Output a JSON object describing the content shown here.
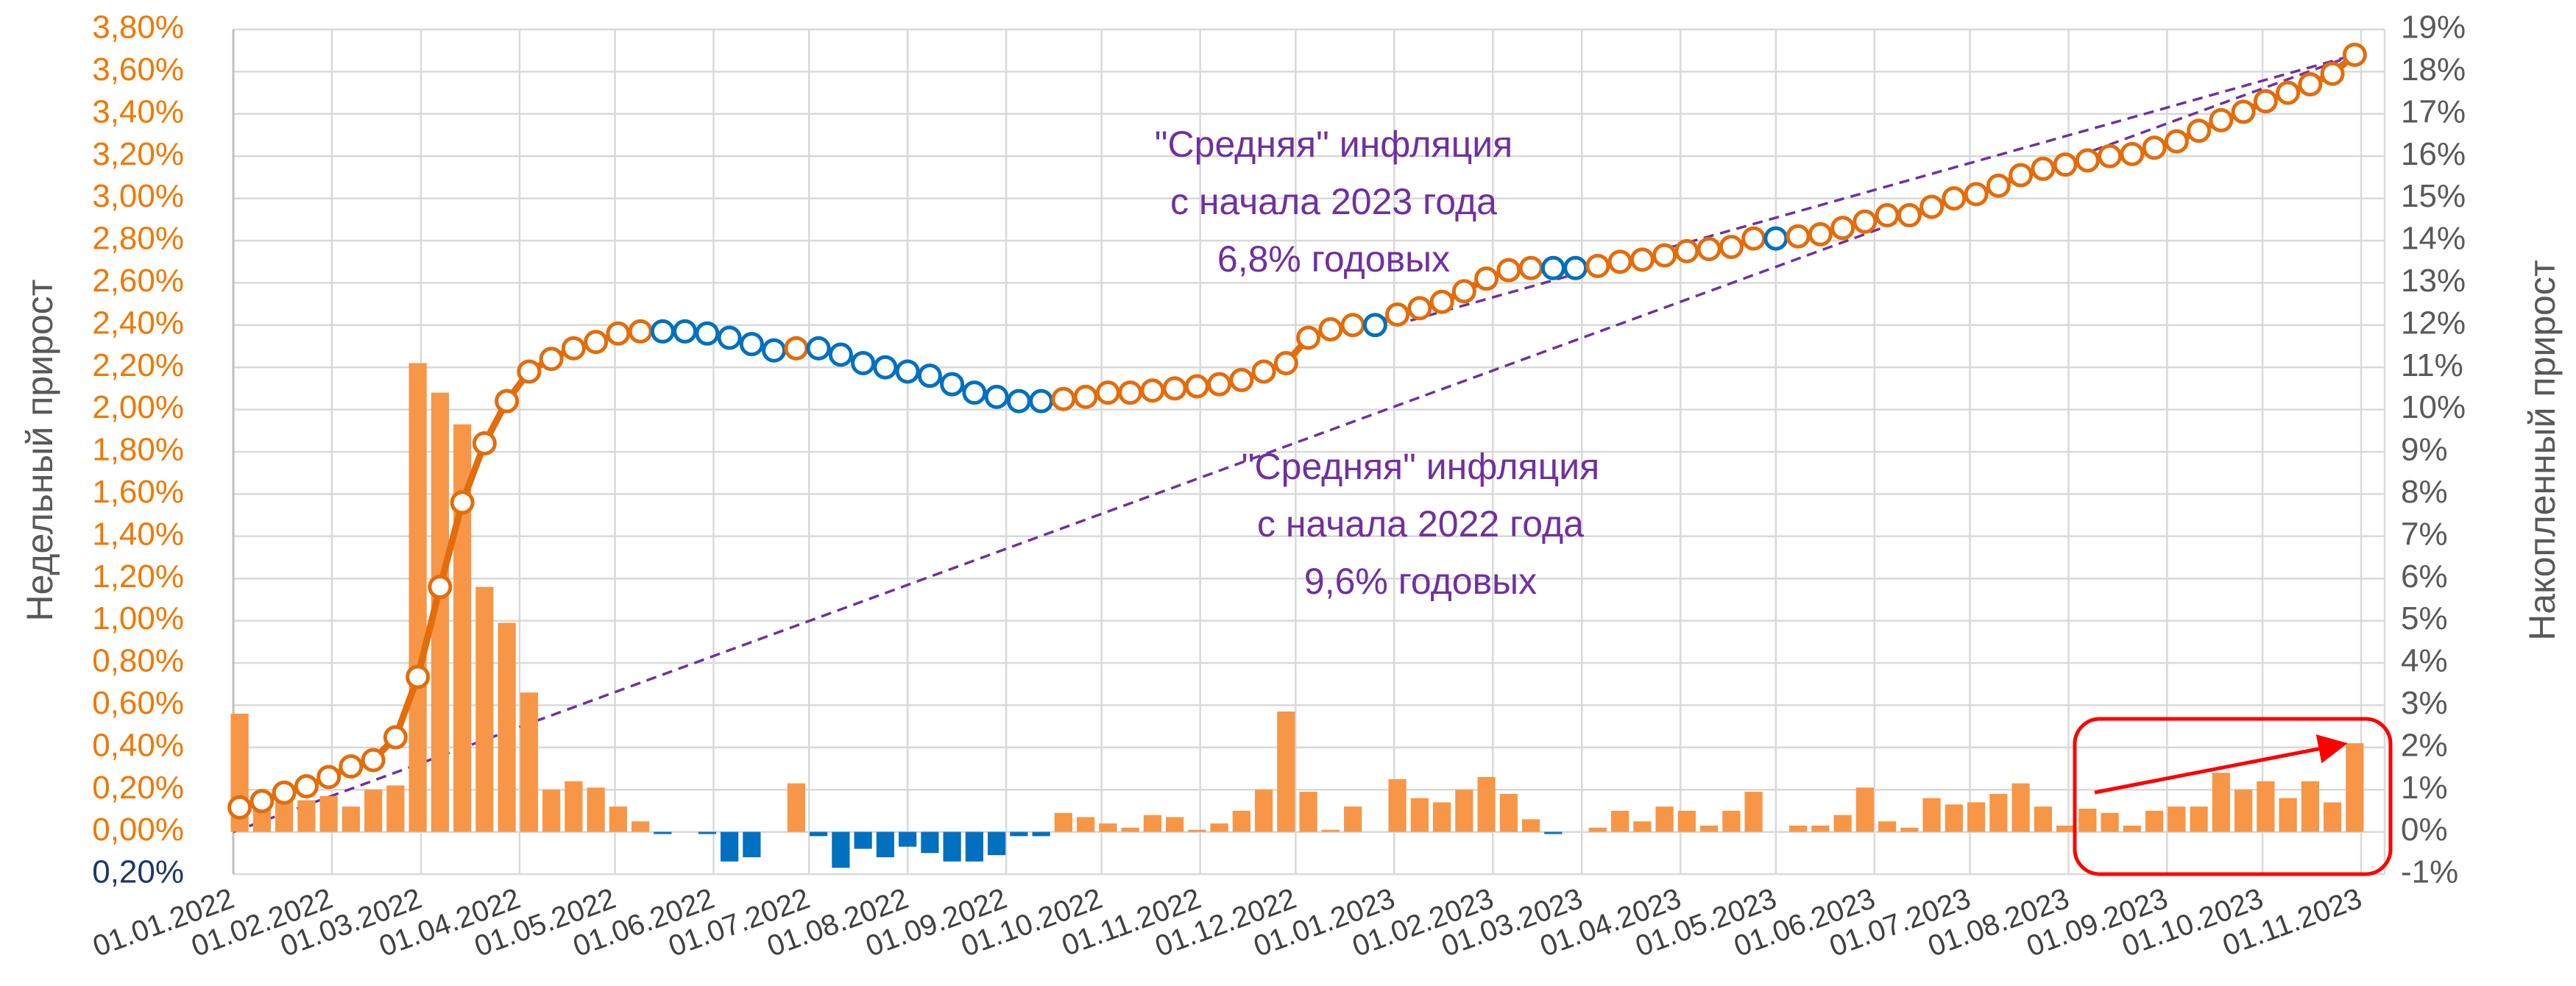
{
  "chart_data": {
    "type": "combo",
    "y_label": "Недельный прирост",
    "y2_label": "Накопленный прирост",
    "x": [
      "03.01.2022",
      "10.01.2022",
      "17.01.2022",
      "24.01.2022",
      "31.01.2022",
      "07.02.2022",
      "14.02.2022",
      "21.02.2022",
      "28.02.2022",
      "07.03.2022",
      "14.03.2022",
      "21.03.2022",
      "28.03.2022",
      "04.04.2022",
      "11.04.2022",
      "18.04.2022",
      "25.04.2022",
      "02.05.2022",
      "09.05.2022",
      "16.05.2022",
      "23.05.2022",
      "30.05.2022",
      "06.06.2022",
      "13.06.2022",
      "20.06.2022",
      "27.06.2022",
      "04.07.2022",
      "11.07.2022",
      "18.07.2022",
      "25.07.2022",
      "01.08.2022",
      "08.08.2022",
      "15.08.2022",
      "22.08.2022",
      "29.08.2022",
      "05.09.2022",
      "12.09.2022",
      "19.09.2022",
      "26.09.2022",
      "03.10.2022",
      "10.10.2022",
      "17.10.2022",
      "24.10.2022",
      "31.10.2022",
      "07.11.2022",
      "14.11.2022",
      "21.11.2022",
      "28.11.2022",
      "05.12.2022",
      "12.12.2022",
      "19.12.2022",
      "26.12.2022",
      "02.01.2023",
      "09.01.2023",
      "16.01.2023",
      "23.01.2023",
      "30.01.2023",
      "06.02.2023",
      "13.02.2023",
      "20.02.2023",
      "27.02.2023",
      "06.03.2023",
      "13.03.2023",
      "20.03.2023",
      "27.03.2023",
      "03.04.2023",
      "10.04.2023",
      "17.04.2023",
      "24.04.2023",
      "01.05.2023",
      "08.05.2023",
      "15.05.2023",
      "22.05.2023",
      "29.05.2023",
      "05.06.2023",
      "12.06.2023",
      "19.06.2023",
      "26.06.2023",
      "03.07.2023",
      "10.07.2023",
      "17.07.2023",
      "24.07.2023",
      "31.07.2023",
      "07.08.2023",
      "14.08.2023",
      "21.08.2023",
      "28.08.2023",
      "04.09.2023",
      "11.09.2023",
      "18.09.2023",
      "25.09.2023",
      "02.10.2023",
      "09.10.2023",
      "16.10.2023",
      "23.10.2023",
      "30.10.2023"
    ],
    "xlim": [
      "01.01.2022",
      "01.11.2023"
    ],
    "xticks": [
      "01.01.2022",
      "01.02.2022",
      "01.03.2022",
      "01.04.2022",
      "01.05.2022",
      "01.06.2022",
      "01.07.2022",
      "01.08.2022",
      "01.09.2022",
      "01.10.2022",
      "01.11.2022",
      "01.12.2022",
      "01.01.2023",
      "01.02.2023",
      "01.03.2023",
      "01.04.2023",
      "01.05.2023",
      "01.06.2023",
      "01.07.2023",
      "01.08.2023",
      "01.09.2023",
      "01.10.2023",
      "01.11.2023"
    ],
    "ylim": [
      -0.2,
      3.8
    ],
    "yticks": [
      {
        "value": -0.2,
        "label": "0,20%"
      },
      {
        "value": 0,
        "label": "0,00%"
      },
      {
        "value": 0.2,
        "label": "0,20%"
      },
      {
        "value": 0.4,
        "label": "0,40%"
      },
      {
        "value": 0.6,
        "label": "0,60%"
      },
      {
        "value": 0.8,
        "label": "0,80%"
      },
      {
        "value": 1.0,
        "label": "1,00%"
      },
      {
        "value": 1.2,
        "label": "1,20%"
      },
      {
        "value": 1.4,
        "label": "1,40%"
      },
      {
        "value": 1.6,
        "label": "1,60%"
      },
      {
        "value": 1.8,
        "label": "1,80%"
      },
      {
        "value": 2.0,
        "label": "2,00%"
      },
      {
        "value": 2.2,
        "label": "2,20%"
      },
      {
        "value": 2.4,
        "label": "2,40%"
      },
      {
        "value": 2.6,
        "label": "2,60%"
      },
      {
        "value": 2.8,
        "label": "2,80%"
      },
      {
        "value": 3.0,
        "label": "3,00%"
      },
      {
        "value": 3.2,
        "label": "3,20%"
      },
      {
        "value": 3.4,
        "label": "3,40%"
      },
      {
        "value": 3.6,
        "label": "3,60%"
      },
      {
        "value": 3.8,
        "label": "3,80%"
      }
    ],
    "ytick_color": "#f07800",
    "ytick_negative_color": "#1f3864",
    "y2lim": [
      -1,
      19
    ],
    "y2ticks": [
      {
        "value": -1,
        "label": "-1%"
      },
      {
        "value": 0,
        "label": "0%"
      },
      {
        "value": 1,
        "label": "1%"
      },
      {
        "value": 2,
        "label": "2%"
      },
      {
        "value": 3,
        "label": "3%"
      },
      {
        "value": 4,
        "label": "4%"
      },
      {
        "value": 5,
        "label": "5%"
      },
      {
        "value": 6,
        "label": "6%"
      },
      {
        "value": 7,
        "label": "7%"
      },
      {
        "value": 8,
        "label": "8%"
      },
      {
        "value": 9,
        "label": "9%"
      },
      {
        "value": 10,
        "label": "10%"
      },
      {
        "value": 11,
        "label": "11%"
      },
      {
        "value": 12,
        "label": "12%"
      },
      {
        "value": 13,
        "label": "13%"
      },
      {
        "value": 14,
        "label": "14%"
      },
      {
        "value": 15,
        "label": "15%"
      },
      {
        "value": 16,
        "label": "16%"
      },
      {
        "value": 17,
        "label": "17%"
      },
      {
        "value": 18,
        "label": "18%"
      },
      {
        "value": 19,
        "label": "19%"
      }
    ],
    "grid": true,
    "series": [
      {
        "type": "bar",
        "color": "#f79646",
        "negative_color": "#0070c0",
        "values": [
          0.56,
          0.12,
          0.15,
          0.15,
          0.17,
          0.12,
          0.2,
          0.22,
          2.22,
          2.08,
          1.93,
          1.16,
          0.99,
          0.66,
          0.2,
          0.24,
          0.21,
          0.12,
          0.05,
          -0.01,
          0.0,
          -0.01,
          -0.14,
          -0.12,
          0.0,
          0.23,
          -0.02,
          -0.17,
          -0.08,
          -0.12,
          -0.07,
          -0.1,
          -0.14,
          -0.14,
          -0.11,
          -0.02,
          -0.02,
          0.09,
          0.07,
          0.04,
          0.02,
          0.08,
          0.07,
          0.01,
          0.04,
          0.1,
          0.2,
          0.57,
          0.19,
          0.01,
          0.12,
          0.0,
          0.25,
          0.16,
          0.14,
          0.2,
          0.26,
          0.18,
          0.06,
          -0.01,
          0.0,
          0.02,
          0.1,
          0.05,
          0.12,
          0.1,
          0.03,
          0.1,
          0.19,
          0.0,
          0.03,
          0.03,
          0.08,
          0.21,
          0.05,
          0.02,
          0.16,
          0.13,
          0.14,
          0.18,
          0.23,
          0.12,
          0.03,
          0.11,
          0.09,
          0.03,
          0.1,
          0.12,
          0.12,
          0.28,
          0.2,
          0.24,
          0.16,
          0.24,
          0.14,
          0.42
        ]
      },
      {
        "type": "line",
        "axis": "y2",
        "color": "#e46c0a",
        "negative_color": "#0070c0",
        "values": [
          0.58,
          0.73,
          0.93,
          1.08,
          1.3,
          1.55,
          1.7,
          2.24,
          3.67,
          5.8,
          7.8,
          9.2,
          10.2,
          10.9,
          11.2,
          11.45,
          11.6,
          11.8,
          11.85,
          11.85,
          11.85,
          11.8,
          11.7,
          11.55,
          11.4,
          11.45,
          11.45,
          11.3,
          11.1,
          11.0,
          10.9,
          10.8,
          10.6,
          10.4,
          10.3,
          10.2,
          10.2,
          10.25,
          10.3,
          10.4,
          10.4,
          10.45,
          10.5,
          10.55,
          10.6,
          10.7,
          10.9,
          11.1,
          11.7,
          11.9,
          12.0,
          12.0,
          12.25,
          12.4,
          12.55,
          12.8,
          13.1,
          13.3,
          13.35,
          13.35,
          13.35,
          13.4,
          13.5,
          13.55,
          13.65,
          13.75,
          13.8,
          13.85,
          14.05,
          14.05,
          14.1,
          14.15,
          14.3,
          14.45,
          14.6,
          14.6,
          14.8,
          15.0,
          15.1,
          15.3,
          15.55,
          15.7,
          15.8,
          15.9,
          16.0,
          16.05,
          16.2,
          16.35,
          16.6,
          16.85,
          17.05,
          17.3,
          17.5,
          17.7,
          17.95,
          18.4
        ]
      }
    ],
    "trend_lines": [
      {
        "axis": "y2",
        "color": "#7030a0",
        "x": [
          "01.01.2022",
          "30.10.2023"
        ],
        "values": [
          0,
          18.4
        ]
      },
      {
        "axis": "y2",
        "color": "#7030a0",
        "x": [
          "01.01.2023",
          "30.10.2023"
        ],
        "values": [
          12.0,
          18.4
        ]
      }
    ],
    "annotations": [
      {
        "color": "#7030a0",
        "lines": [
          "\"Средняя\" инфляция",
          "с начала 2023 года",
          "6,8% годовых"
        ]
      },
      {
        "color": "#7030a0",
        "lines": [
          "\"Средняя\" инфляция",
          "с начала 2022 года",
          "9,6% годовых"
        ]
      }
    ]
  }
}
